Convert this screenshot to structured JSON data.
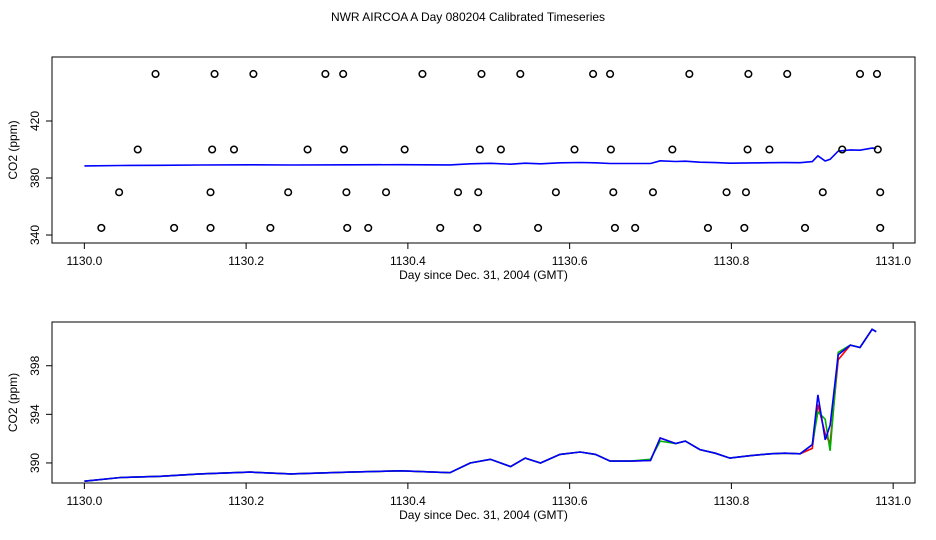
{
  "title": "NWR AIRCOA A  Day 080204  Calibrated Timeseries",
  "chart_data": [
    {
      "type": "line",
      "ylabel": "CO2 (ppm)",
      "xlabel": "Day since Dec. 31, 2004 (GMT)",
      "xlim": [
        1129.96,
        1131.027
      ],
      "ylim": [
        334.4,
        464.9
      ],
      "xticks": [
        {
          "value": 1130,
          "label": "1130.0"
        },
        {
          "value": 1130.2,
          "label": "1130.2"
        },
        {
          "value": 1130.4,
          "label": "1130.4"
        },
        {
          "value": 1130.6,
          "label": "1130.6"
        },
        {
          "value": 1130.8,
          "label": "1130.8"
        },
        {
          "value": 1131,
          "label": "1131.0"
        }
      ],
      "yticks": [
        340,
        380,
        420
      ],
      "x": [
        1130.0,
        1130.045,
        1130.094,
        1130.143,
        1130.205,
        1130.255,
        1130.329,
        1130.391,
        1130.452,
        1130.477,
        1130.502,
        1130.527,
        1130.545,
        1130.564,
        1130.588,
        1130.613,
        1130.632,
        1130.65,
        1130.675,
        1130.7,
        1130.712,
        1130.731,
        1130.743,
        1130.761,
        1130.78,
        1130.798,
        1130.823,
        1130.848,
        1130.866,
        1130.885,
        1130.9,
        1130.907,
        1130.916,
        1130.922,
        1130.932,
        1130.947,
        1130.959,
        1130.974,
        1130.979
      ],
      "series": [
        {
          "color": "#0000ff",
          "values": [
            388.5,
            388.8,
            388.9,
            389.1,
            389.25,
            389.1,
            389.25,
            389.35,
            389.2,
            390.0,
            390.3,
            389.7,
            390.4,
            390.0,
            390.7,
            390.9,
            390.7,
            390.15,
            390.15,
            390.2,
            392.05,
            391.6,
            391.8,
            391.1,
            390.8,
            390.4,
            390.6,
            390.75,
            390.8,
            390.75,
            391.5,
            395.6,
            391.9,
            393.1,
            398.9,
            399.7,
            399.5,
            401.0,
            400.8
          ]
        },
        {
          "mode": "points",
          "color": "#000000",
          "x": [
            1130.088,
            1130.161,
            1130.209,
            1130.298,
            1130.32,
            1130.418,
            1130.491,
            1130.539,
            1130.629,
            1130.65,
            1130.748,
            1130.821,
            1130.869,
            1130.959,
            1130.98,
            1130.066,
            1130.158,
            1130.185,
            1130.276,
            1130.321,
            1130.396,
            1130.489,
            1130.515,
            1130.606,
            1130.651,
            1130.727,
            1130.82,
            1130.847,
            1130.937,
            1130.981,
            1130.043,
            1130.156,
            1130.252,
            1130.324,
            1130.373,
            1130.462,
            1130.487,
            1130.583,
            1130.654,
            1130.703,
            1130.794,
            1130.818,
            1130.913,
            1130.984,
            1130.021,
            1130.111,
            1130.156,
            1130.23,
            1130.325,
            1130.351,
            1130.44,
            1130.486,
            1130.561,
            1130.656,
            1130.681,
            1130.771,
            1130.816,
            1130.891,
            1130.984
          ],
          "values": [
            453,
            453,
            453,
            453,
            453,
            453,
            453,
            453,
            453,
            453,
            453,
            453,
            453,
            453,
            453,
            400,
            400,
            400,
            400,
            400,
            400,
            400,
            400,
            400,
            400,
            400,
            400,
            400,
            400,
            400,
            370,
            370,
            370,
            370,
            370,
            370,
            370,
            370,
            370,
            370,
            370,
            370,
            370,
            370,
            345,
            345,
            345,
            345,
            345,
            345,
            345,
            345,
            345,
            345,
            345,
            345,
            345,
            345,
            345
          ]
        }
      ]
    },
    {
      "type": "line",
      "ylabel": "CO2 (ppm)",
      "xlabel": "Day since Dec. 31, 2004 (GMT)",
      "xlim": [
        1129.96,
        1131.027
      ],
      "ylim": [
        388.35,
        401.6
      ],
      "xticks": [
        {
          "value": 1130,
          "label": "1130.0"
        },
        {
          "value": 1130.2,
          "label": "1130.2"
        },
        {
          "value": 1130.4,
          "label": "1130.4"
        },
        {
          "value": 1130.6,
          "label": "1130.6"
        },
        {
          "value": 1130.8,
          "label": "1130.8"
        },
        {
          "value": 1131,
          "label": "1131.0"
        }
      ],
      "yticks": [
        390,
        394,
        398
      ],
      "x": [
        1130.0,
        1130.045,
        1130.094,
        1130.143,
        1130.205,
        1130.255,
        1130.329,
        1130.391,
        1130.452,
        1130.477,
        1130.502,
        1130.527,
        1130.545,
        1130.564,
        1130.588,
        1130.613,
        1130.632,
        1130.65,
        1130.675,
        1130.7,
        1130.712,
        1130.731,
        1130.743,
        1130.761,
        1130.78,
        1130.798,
        1130.823,
        1130.848,
        1130.866,
        1130.885,
        1130.9,
        1130.907,
        1130.916,
        1130.922,
        1130.932,
        1130.947,
        1130.959,
        1130.974,
        1130.979
      ],
      "series": [
        {
          "color": "#ff0000",
          "values": [
            388.5,
            388.8,
            388.9,
            389.1,
            389.25,
            389.1,
            389.25,
            389.35,
            389.2,
            390.0,
            390.3,
            389.7,
            390.4,
            390.0,
            390.7,
            390.9,
            390.7,
            390.15,
            390.15,
            390.2,
            392.05,
            391.6,
            391.8,
            391.1,
            390.8,
            390.4,
            390.6,
            390.75,
            390.8,
            390.75,
            391.2,
            394.8,
            392.4,
            391.6,
            398.5,
            399.7,
            399.5,
            401.0,
            400.8
          ]
        },
        {
          "color": "#00b000",
          "values": [
            388.5,
            388.8,
            388.9,
            389.1,
            389.25,
            389.1,
            389.25,
            389.35,
            389.2,
            390.0,
            390.3,
            389.7,
            390.4,
            390.0,
            390.7,
            390.9,
            390.7,
            390.15,
            390.15,
            390.3,
            391.8,
            391.6,
            391.8,
            391.1,
            390.8,
            390.4,
            390.6,
            390.75,
            390.8,
            390.75,
            391.5,
            394.2,
            393.6,
            391.0,
            399.1,
            399.7,
            399.5,
            401.0,
            400.8
          ]
        },
        {
          "color": "#0000ff",
          "values": [
            388.5,
            388.8,
            388.9,
            389.1,
            389.25,
            389.1,
            389.25,
            389.35,
            389.2,
            390.0,
            390.3,
            389.7,
            390.4,
            390.0,
            390.7,
            390.9,
            390.7,
            390.15,
            390.15,
            390.2,
            392.05,
            391.6,
            391.8,
            391.1,
            390.8,
            390.4,
            390.6,
            390.75,
            390.8,
            390.75,
            391.5,
            395.6,
            391.9,
            393.1,
            398.9,
            399.7,
            399.5,
            401.0,
            400.8
          ]
        }
      ]
    }
  ]
}
